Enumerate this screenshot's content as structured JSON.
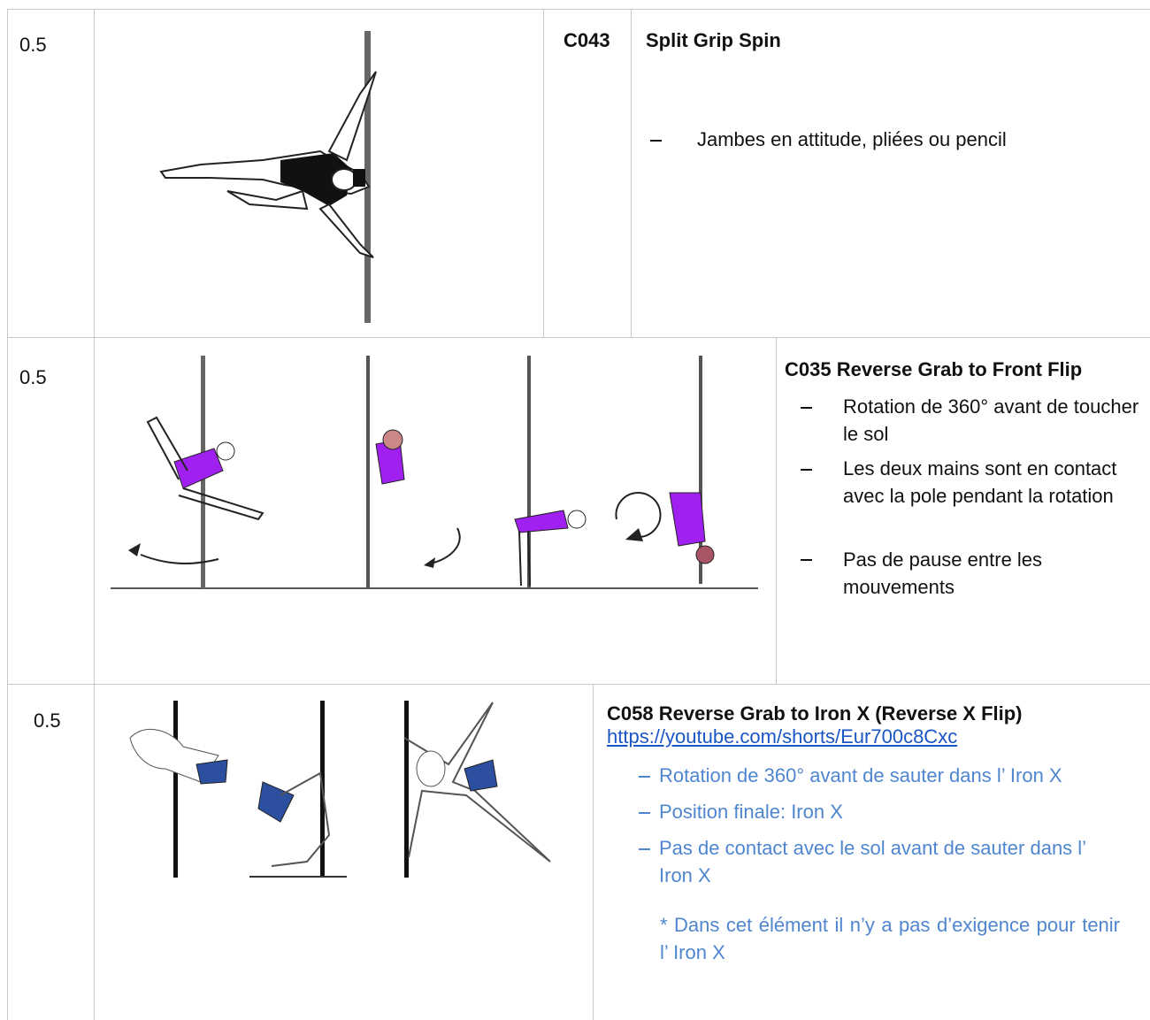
{
  "rows": [
    {
      "score": "0.5",
      "code": "C043",
      "title": "Split Grip Spin",
      "bullets": [
        "Jambes en attitude, pliées ou pencil"
      ]
    },
    {
      "score": "0.5",
      "title": "C035 Reverse Grab to Front Flip",
      "bullets": [
        "Rotation de 360° avant de toucher le sol",
        "Les deux mains sont en contact avec la pole pendant la rotation",
        "Pas de pause entre les mouvements"
      ]
    },
    {
      "score": "0.5",
      "title": "C058 Reverse Grab to Iron X (Reverse X Flip)",
      "link": "https://youtube.com/shorts/Eur700c8Cxc",
      "bullets": [
        "Rotation de 360° avant de sauter dans l’ Iron X",
        "Position finale: Iron X",
        "Pas de contact avec le sol avant de sauter dans l’ Iron X"
      ],
      "note": "* Dans cet élément il n’y a pas d’exigence pour tenir l’ Iron X"
    }
  ]
}
